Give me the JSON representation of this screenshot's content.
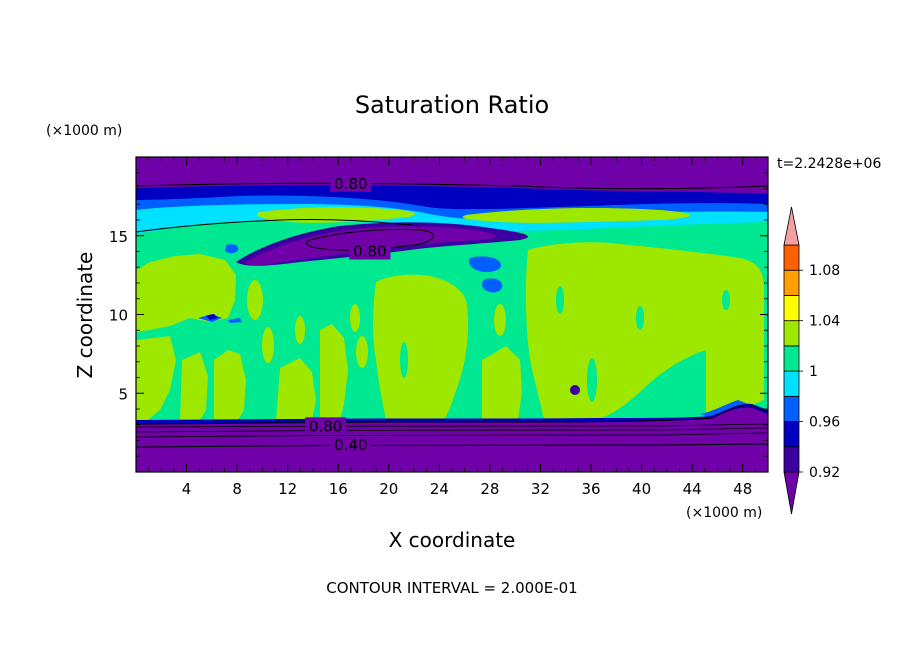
{
  "chart_data": {
    "type": "heatmap",
    "title": "Saturation Ratio",
    "xlabel": "X coordinate",
    "ylabel": "Z coordinate",
    "x_unit": "(×1000 m)",
    "y_unit": "(×1000 m)",
    "time_label": "t=2.2428e+06",
    "footer": "CONTOUR INTERVAL = 2.000E-01",
    "xlim": [
      0,
      50
    ],
    "ylim": [
      0,
      20
    ],
    "x_ticks": [
      4,
      8,
      12,
      16,
      20,
      24,
      28,
      32,
      36,
      40,
      44,
      48
    ],
    "y_ticks": [
      5,
      10,
      15
    ],
    "contour_labels": [
      {
        "text": "0.80",
        "x": 17,
        "y": 18.3
      },
      {
        "text": "0.80",
        "x": 18.5,
        "y": 14.0
      },
      {
        "text": "0.80",
        "x": 15,
        "y": 2.9
      },
      {
        "text": "0.40",
        "x": 17,
        "y": 1.7
      }
    ],
    "colorbar": {
      "levels": [
        0.92,
        0.94,
        0.96,
        0.98,
        1.0,
        1.02,
        1.04,
        1.06,
        1.08,
        1.1
      ],
      "labels": [
        "0.92",
        "0.96",
        "1",
        "1.04",
        "1.08"
      ],
      "colors": [
        "#7000a8",
        "#3c00a0",
        "#0000c0",
        "#0060ff",
        "#00e0ff",
        "#00e890",
        "#9ee800",
        "#ffff00",
        "#ffa000",
        "#ff6000",
        "#ff0000",
        "#f4a0a0"
      ]
    },
    "regions": {
      "stable_top": {
        "z": [
          18.0,
          20.0
        ],
        "value": "< 0.92"
      },
      "upper_dry_layer": {
        "x": [
          14,
          22
        ],
        "z": [
          13.5,
          15.5
        ],
        "value": "< 0.92"
      },
      "cloud_layer": {
        "z": [
          3.5,
          13.0
        ],
        "value": "0.98 - 1.02"
      },
      "stable_bottom": {
        "z": [
          0,
          3.5
        ],
        "value": "< 0.92"
      }
    }
  }
}
